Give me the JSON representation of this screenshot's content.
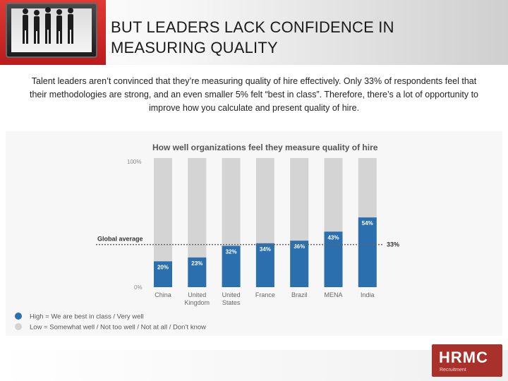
{
  "slide": {
    "title": "BUT LEADERS LACK CONFIDENCE IN MEASURING QUALITY",
    "intro": "Talent leaders aren’t convinced that they’re measuring quality of hire effectively. Only 33% of respondents feel that their methodologies are strong, and an even smaller 5% felt “best in class”. Therefore, there’s a lot of opportunity to improve how you calculate and present quality of hire."
  },
  "logo": {
    "brand": "HRMC",
    "sub": "Recruitment"
  },
  "chart_data": {
    "type": "bar",
    "title": "How well organizations feel they measure quality of hire",
    "categories": [
      "China",
      "United Kingdom",
      "United States",
      "France",
      "Brazil",
      "MENA",
      "India"
    ],
    "category_lines": [
      [
        "China"
      ],
      [
        "United",
        "Kingdom"
      ],
      [
        "United",
        "States"
      ],
      [
        "France"
      ],
      [
        "Brazil"
      ],
      [
        "MENA"
      ],
      [
        "India"
      ]
    ],
    "values": [
      20,
      23,
      32,
      34,
      36,
      43,
      54
    ],
    "value_labels": [
      "20%",
      "23%",
      "32%",
      "34%",
      "36%",
      "43%",
      "54%"
    ],
    "ylim": [
      0,
      100
    ],
    "ytick_labels": {
      "top": "100%",
      "bottom": "0%"
    },
    "global_average": {
      "label": "Global average",
      "value": 33,
      "value_label": "33%"
    },
    "legend": [
      {
        "label": "High = We are best in class / Very well",
        "color": "#2b6fae"
      },
      {
        "label": "Low = Somewhat well / Not too well / Not at all / Don’t know",
        "color": "#d4d4d4"
      }
    ],
    "legend_position": "bottom-left",
    "colors": {
      "high": "#2b6fae",
      "low": "#d4d4d4"
    }
  }
}
